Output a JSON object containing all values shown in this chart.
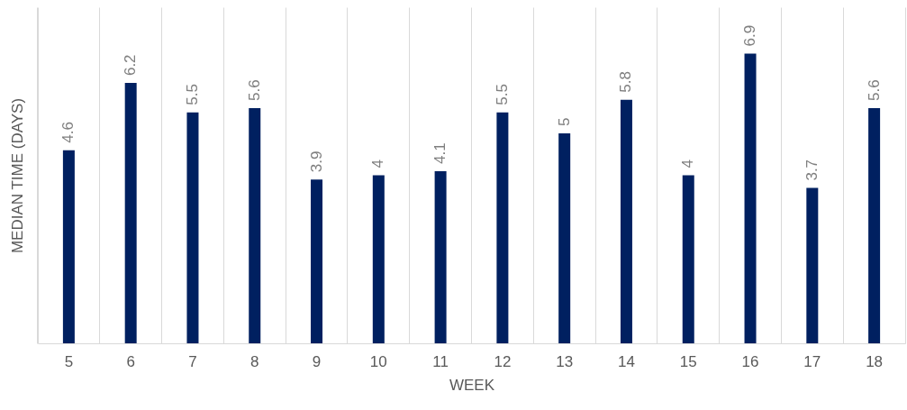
{
  "chart_data": {
    "type": "bar",
    "xlabel": "WEEK",
    "ylabel": "MEDIAN TIME (DAYS)",
    "categories": [
      "5",
      "6",
      "7",
      "8",
      "9",
      "10",
      "11",
      "12",
      "13",
      "14",
      "15",
      "16",
      "17",
      "18"
    ],
    "values": [
      4.6,
      6.2,
      5.5,
      5.6,
      3.9,
      4,
      4.1,
      5.5,
      5,
      5.8,
      4,
      6.9,
      3.7,
      5.6
    ],
    "color": "#002060",
    "data_labels": true,
    "grid": "x"
  }
}
